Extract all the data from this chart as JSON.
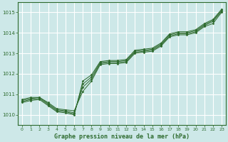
{
  "title": "Graphe pression niveau de la mer (hPa)",
  "background_color": "#cde8e8",
  "grid_color": "#ffffff",
  "line_color": "#2d6a2d",
  "marker_color": "#2d6a2d",
  "xlim": [
    -0.5,
    23.5
  ],
  "ylim": [
    1009.5,
    1015.5
  ],
  "yticks": [
    1010,
    1011,
    1012,
    1013,
    1014,
    1015
  ],
  "xticks": [
    0,
    1,
    2,
    3,
    4,
    5,
    6,
    7,
    8,
    9,
    10,
    11,
    12,
    13,
    14,
    15,
    16,
    17,
    18,
    19,
    20,
    21,
    22,
    23
  ],
  "series": [
    [
      1010.75,
      1010.85,
      1010.85,
      1010.6,
      1010.3,
      1010.25,
      1010.2,
      1011.15,
      1011.65,
      1012.45,
      1012.5,
      1012.5,
      1012.55,
      1013.0,
      1013.05,
      1013.1,
      1013.35,
      1013.8,
      1013.9,
      1013.9,
      1014.0,
      1014.3,
      1014.45,
      1015.0
    ],
    [
      1010.7,
      1010.8,
      1010.85,
      1010.55,
      1010.25,
      1010.2,
      1010.1,
      1011.35,
      1011.75,
      1012.5,
      1012.55,
      1012.55,
      1012.6,
      1013.05,
      1013.1,
      1013.15,
      1013.4,
      1013.85,
      1013.95,
      1013.95,
      1014.05,
      1014.35,
      1014.55,
      1015.05
    ],
    [
      1010.65,
      1010.75,
      1010.8,
      1010.5,
      1010.2,
      1010.15,
      1010.05,
      1011.5,
      1011.85,
      1012.55,
      1012.6,
      1012.6,
      1012.65,
      1013.1,
      1013.15,
      1013.2,
      1013.45,
      1013.9,
      1014.0,
      1014.0,
      1014.1,
      1014.4,
      1014.6,
      1015.1
    ],
    [
      1010.6,
      1010.7,
      1010.75,
      1010.45,
      1010.15,
      1010.1,
      1010.0,
      1011.65,
      1011.95,
      1012.6,
      1012.65,
      1012.65,
      1012.7,
      1013.15,
      1013.2,
      1013.25,
      1013.5,
      1013.95,
      1014.05,
      1014.05,
      1014.15,
      1014.45,
      1014.65,
      1015.15
    ]
  ]
}
